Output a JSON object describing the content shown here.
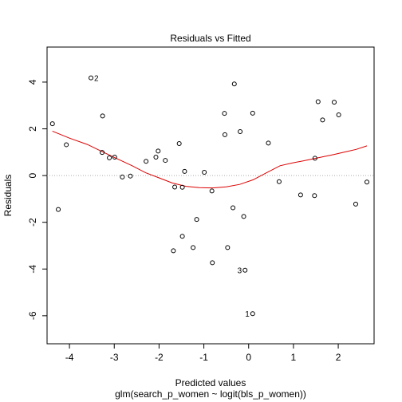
{
  "chart_data": {
    "type": "scatter",
    "title": "Residuals vs Fitted",
    "xlabel": "Predicted values",
    "xlabel_sub": "glm(search_p_women ~ logit(bls_p_women))",
    "ylabel": "Residuals",
    "xlim": [
      -4.5,
      2.8
    ],
    "ylim": [
      -7.2,
      5.5
    ],
    "x_ticks": [
      -4,
      -3,
      -2,
      -1,
      0,
      1,
      2
    ],
    "x_tick_labels": [
      "-4",
      "-3",
      "-2",
      "-1",
      "0",
      "1",
      "2"
    ],
    "y_ticks": [
      -6,
      -4,
      -2,
      0,
      2,
      4
    ],
    "y_tick_labels": [
      "-6",
      "-4",
      "-2",
      "0",
      "2",
      "4"
    ],
    "reference_line": {
      "y": 0,
      "style": "dotted",
      "color": "#aaaaaa"
    },
    "points": [
      {
        "x": -4.38,
        "y": 2.22
      },
      {
        "x": -4.25,
        "y": -1.45
      },
      {
        "x": -4.07,
        "y": 1.32
      },
      {
        "x": -3.52,
        "y": 4.18,
        "label": "2"
      },
      {
        "x": -3.26,
        "y": 2.55
      },
      {
        "x": -3.27,
        "y": 0.99
      },
      {
        "x": -3.11,
        "y": 0.76
      },
      {
        "x": -2.99,
        "y": 0.79
      },
      {
        "x": -2.82,
        "y": -0.06
      },
      {
        "x": -2.64,
        "y": -0.02
      },
      {
        "x": -2.29,
        "y": 0.61
      },
      {
        "x": -2.07,
        "y": 0.79
      },
      {
        "x": -2.02,
        "y": 1.05
      },
      {
        "x": -1.86,
        "y": 0.65
      },
      {
        "x": -1.68,
        "y": -3.22
      },
      {
        "x": -1.65,
        "y": -0.49
      },
      {
        "x": -1.55,
        "y": 1.37
      },
      {
        "x": -1.48,
        "y": -0.5
      },
      {
        "x": -1.48,
        "y": -2.6
      },
      {
        "x": -1.43,
        "y": 0.18
      },
      {
        "x": -1.24,
        "y": -3.08
      },
      {
        "x": -1.16,
        "y": -1.88
      },
      {
        "x": -0.99,
        "y": 0.14
      },
      {
        "x": -0.81,
        "y": -3.73
      },
      {
        "x": -0.82,
        "y": -0.66
      },
      {
        "x": -0.54,
        "y": 2.66
      },
      {
        "x": -0.53,
        "y": 1.75
      },
      {
        "x": -0.47,
        "y": -3.08
      },
      {
        "x": -0.35,
        "y": -1.38
      },
      {
        "x": -0.32,
        "y": 3.92
      },
      {
        "x": -0.19,
        "y": 1.88
      },
      {
        "x": -0.11,
        "y": -1.75
      },
      {
        "x": -0.08,
        "y": -4.05,
        "label": "3"
      },
      {
        "x": 0.09,
        "y": 2.67
      },
      {
        "x": 0.09,
        "y": -5.91,
        "label": "1"
      },
      {
        "x": 0.44,
        "y": 1.39
      },
      {
        "x": 0.68,
        "y": -0.26
      },
      {
        "x": 1.16,
        "y": -0.83
      },
      {
        "x": 1.47,
        "y": -0.86
      },
      {
        "x": 1.48,
        "y": 0.74
      },
      {
        "x": 1.55,
        "y": 3.16
      },
      {
        "x": 1.65,
        "y": 2.38
      },
      {
        "x": 1.91,
        "y": 3.14
      },
      {
        "x": 2.01,
        "y": 2.6
      },
      {
        "x": 2.39,
        "y": -1.22
      },
      {
        "x": 2.64,
        "y": -0.28
      }
    ],
    "smoother": {
      "color": "#dd0000",
      "x": [
        -4.38,
        -4.0,
        -3.6,
        -3.3,
        -3.0,
        -2.6,
        -2.3,
        -2.0,
        -1.7,
        -1.4,
        -1.1,
        -0.8,
        -0.5,
        -0.2,
        0.1,
        0.4,
        0.7,
        1.0,
        1.3,
        1.6,
        1.9,
        2.2,
        2.4,
        2.64
      ],
      "y": [
        1.9,
        1.6,
        1.33,
        1.05,
        0.78,
        0.42,
        0.12,
        -0.1,
        -0.32,
        -0.46,
        -0.52,
        -0.53,
        -0.48,
        -0.38,
        -0.18,
        0.12,
        0.42,
        0.55,
        0.66,
        0.78,
        0.9,
        1.03,
        1.12,
        1.27
      ]
    }
  }
}
